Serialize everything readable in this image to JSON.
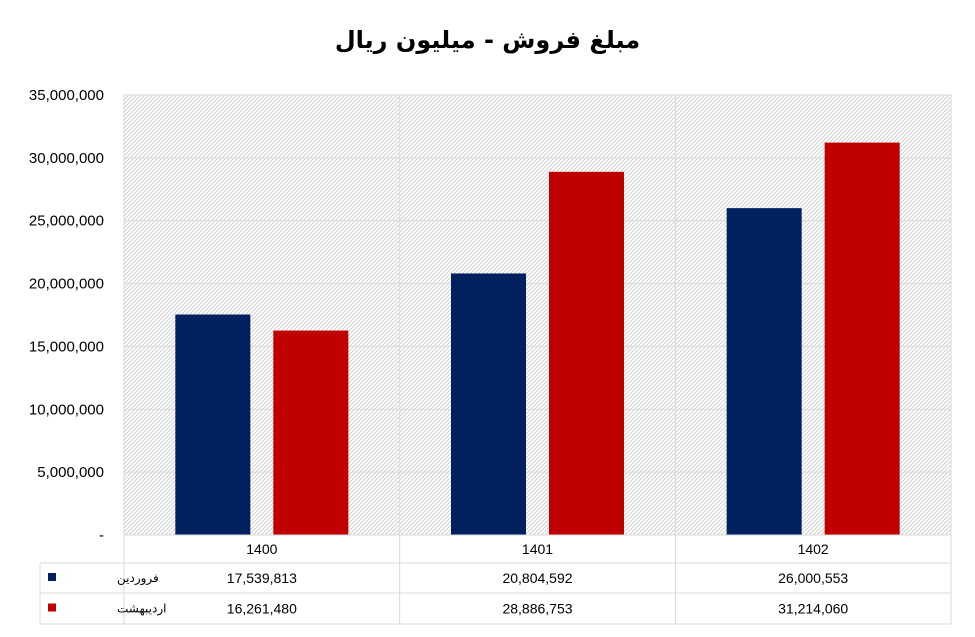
{
  "chart_data": {
    "type": "bar",
    "title": "مبلغ فروش - میلیون ریال",
    "categories": [
      "1400",
      "1401",
      "1402"
    ],
    "series": [
      {
        "name": "فروردین",
        "values": [
          17539813,
          20804592,
          26000553
        ],
        "color": "#002060"
      },
      {
        "name": "اردیبهشت",
        "values": [
          16261480,
          28886753,
          31214060
        ],
        "color": "#C00000"
      }
    ],
    "ylim": [
      0,
      35000000
    ],
    "yticks": [
      0,
      5000000,
      10000000,
      15000000,
      20000000,
      25000000,
      30000000,
      35000000
    ],
    "ytick_labels": [
      "-",
      "5,000,000",
      "10,000,000",
      "15,000,000",
      "20,000,000",
      "25,000,000",
      "30,000,000",
      "35,000,000"
    ],
    "data_table": {
      "rows": [
        [
          "17,539,813",
          "20,804,592",
          "26,000,553"
        ],
        [
          "16,261,480",
          "28,886,753",
          "31,214,060"
        ]
      ]
    },
    "grid": true,
    "legend": "data-table"
  }
}
